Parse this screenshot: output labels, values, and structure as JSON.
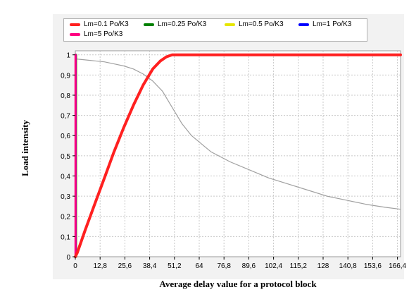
{
  "chart_data": {
    "type": "line",
    "xlabel": "Average delay value for a protocol block",
    "ylabel": "Load intensity",
    "xlim": [
      0,
      168
    ],
    "ylim": [
      0,
      1.02
    ],
    "x_ticks": [
      "0",
      "12,8",
      "25,6",
      "38,4",
      "51,2",
      "64",
      "76,8",
      "89,6",
      "102,4",
      "115,2",
      "128",
      "140,8",
      "153,6",
      "166,4"
    ],
    "x_tick_values": [
      0,
      12.8,
      25.6,
      38.4,
      51.2,
      64,
      76.8,
      89.6,
      102.4,
      115.2,
      128,
      140.8,
      153.6,
      166.4
    ],
    "y_ticks": [
      "0",
      "0,1",
      "0,2",
      "0,3",
      "0,4",
      "0,5",
      "0,6",
      "0,7",
      "0,8",
      "0,9",
      "1"
    ],
    "y_tick_values": [
      0,
      0.1,
      0.2,
      0.3,
      0.4,
      0.5,
      0.6,
      0.7,
      0.8,
      0.9,
      1
    ],
    "grid": true,
    "legend_position": "top",
    "series": [
      {
        "name": "Lm=0.1 Po/K3",
        "color": "#ff2020",
        "x": [
          0,
          1,
          5,
          10,
          15,
          20,
          25,
          30,
          35,
          40,
          44,
          47,
          50,
          53,
          56,
          60,
          70,
          100,
          130,
          160,
          168
        ],
        "y": [
          0,
          0.02,
          0.13,
          0.26,
          0.39,
          0.52,
          0.64,
          0.75,
          0.85,
          0.93,
          0.97,
          0.99,
          1.0,
          1.0,
          1.0,
          1.0,
          1.0,
          1.0,
          1.0,
          1.0,
          1.0
        ]
      },
      {
        "name": "Lm=0.25 Po/K3",
        "color": "#008000",
        "x": [
          0.4,
          0.4
        ],
        "y": [
          0,
          1.0
        ]
      },
      {
        "name": "Lm=0.5 Po/K3",
        "color": "#e6e600",
        "x": [
          0.3,
          0.3
        ],
        "y": [
          0,
          1.0
        ]
      },
      {
        "name": "Lm=1 Po/K3",
        "color": "#0000ff",
        "x": [
          0.2,
          0.2
        ],
        "y": [
          0,
          1.0
        ]
      },
      {
        "name": "Lm=5 Po/K3",
        "color": "#ff0080",
        "x": [
          0.1,
          0.1
        ],
        "y": [
          0,
          1.0
        ]
      },
      {
        "color": "#a0a0a0",
        "x": [
          0,
          5,
          10,
          15,
          20,
          25,
          30,
          35,
          40,
          45,
          50,
          55,
          60,
          65,
          70,
          80,
          90,
          100,
          110,
          120,
          130,
          140,
          150,
          160,
          168
        ],
        "y": [
          0.98,
          0.975,
          0.97,
          0.965,
          0.955,
          0.945,
          0.93,
          0.905,
          0.87,
          0.82,
          0.74,
          0.66,
          0.6,
          0.56,
          0.52,
          0.47,
          0.43,
          0.39,
          0.36,
          0.33,
          0.3,
          0.28,
          0.26,
          0.245,
          0.235
        ]
      }
    ]
  }
}
